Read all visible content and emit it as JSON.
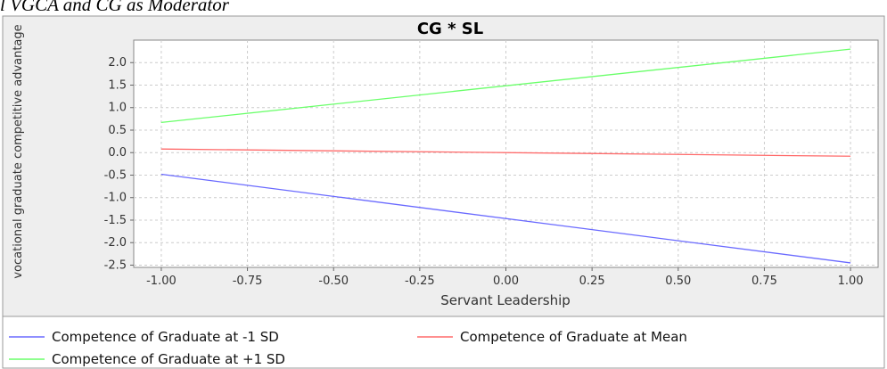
{
  "caption": "l VGCA and CG as Moderator",
  "chart_data": {
    "type": "line",
    "title": "CG * SL",
    "x_label": "Servant Leadership",
    "y_label": "vocational graduate competitive advantage",
    "x": [
      -1,
      1
    ],
    "series": [
      {
        "name": "Competence of Graduate at -1 SD",
        "color": "#6a6aff",
        "values": [
          -0.48,
          -2.45
        ]
      },
      {
        "name": "Competence of Graduate at Mean",
        "color": "#ff6a6a",
        "values": [
          0.08,
          -0.08
        ]
      },
      {
        "name": "Competence of Graduate at +1 SD",
        "color": "#6aff6a",
        "values": [
          0.67,
          2.3
        ]
      }
    ],
    "xlim": [
      -1.08,
      1.08
    ],
    "xticks": [
      {
        "value": -1,
        "label": "-1.00"
      },
      -0.75,
      {
        "value": -0.5,
        "label": "-0.50"
      },
      -0.25,
      {
        "value": 0,
        "label": "0.00"
      },
      0.25,
      {
        "value": 0.5,
        "label": "0.50"
      },
      0.75,
      {
        "value": 1,
        "label": "1.00"
      }
    ],
    "ylim": [
      -2.55,
      2.5
    ],
    "yticks": [
      {
        "value": -2.5,
        "label": "-2.5"
      },
      {
        "value": -2,
        "label": "-2.0"
      },
      -1.5,
      {
        "value": -1,
        "label": "-1.0"
      },
      -0.5,
      {
        "value": 0,
        "label": "0.0"
      },
      0.5,
      {
        "value": 1,
        "label": "1.0"
      },
      1.5,
      {
        "value": 2,
        "label": "2.0"
      }
    ],
    "grid": true
  }
}
